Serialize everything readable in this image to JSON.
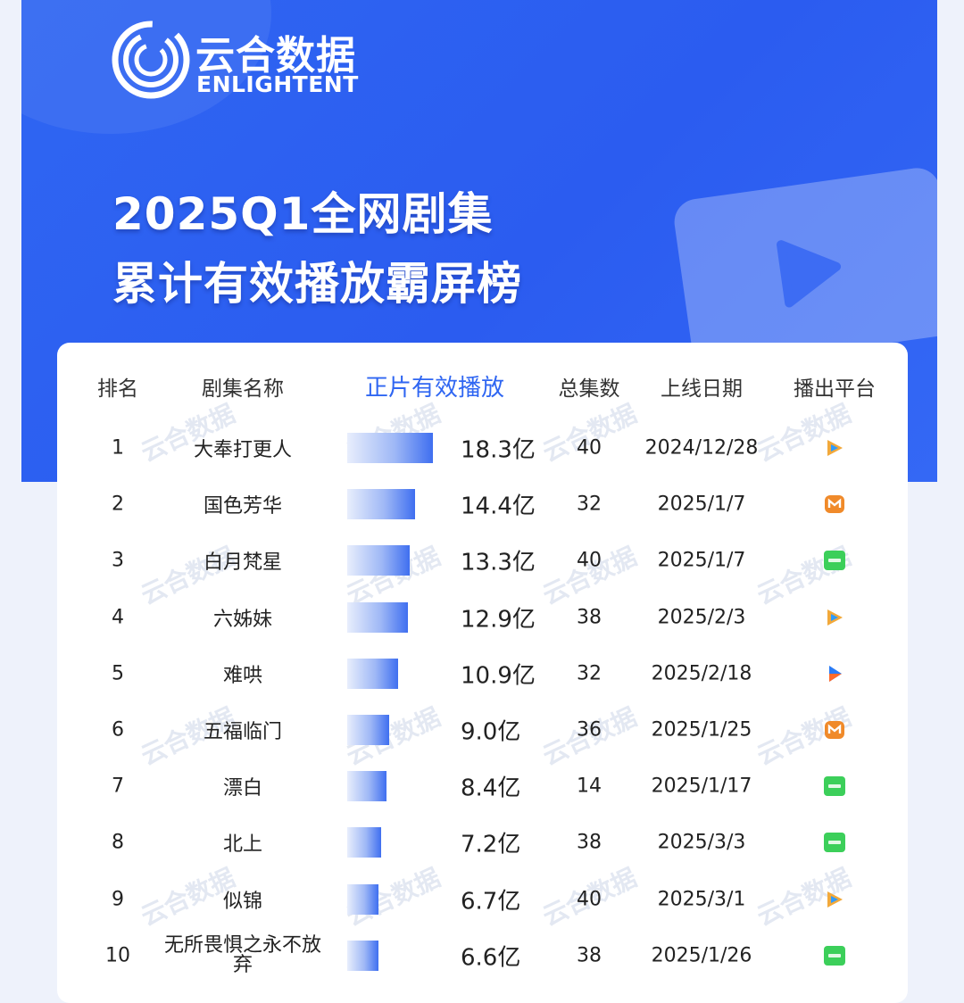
{
  "brand": {
    "cn": "云合数据",
    "en": "ENLIGHTENT",
    "watermark": "云合数据"
  },
  "title": {
    "line1": "2025Q1全网剧集",
    "line2": "累计有效播放霸屏榜"
  },
  "headers": {
    "rank": "排名",
    "name": "剧集名称",
    "views": "正片有效播放",
    "episodes": "总集数",
    "date": "上线日期",
    "platform": "播出平台"
  },
  "colors": {
    "hero_blue": "#2f66f2",
    "accent": "#2f66f2",
    "tencent": "#f2a93b",
    "mango": "#f08a2a",
    "iqiyi": "#3ccf5a",
    "youku": "#2a7bf5"
  },
  "chart_data": {
    "type": "bar",
    "unit": "亿",
    "categories": [
      "大奉打更人",
      "国色芳华",
      "白月梵星",
      "六姊妹",
      "难哄",
      "五福临门",
      "漂白",
      "北上",
      "似锦",
      "无所畏惧之永不放弃"
    ],
    "values": [
      18.3,
      14.4,
      13.3,
      12.9,
      10.9,
      9.0,
      8.4,
      7.2,
      6.7,
      6.6
    ],
    "labels": [
      "18.3亿",
      "14.4亿",
      "13.3亿",
      "12.9亿",
      "10.9亿",
      "9.0亿",
      "8.4亿",
      "7.2亿",
      "6.7亿",
      "6.6亿"
    ]
  },
  "rows": [
    {
      "rank": "1",
      "name": "大奉打更人",
      "views": "18.3亿",
      "episodes": "40",
      "date": "2024/12/28",
      "platform": "tencent-video-icon"
    },
    {
      "rank": "2",
      "name": "国色芳华",
      "views": "14.4亿",
      "episodes": "32",
      "date": "2025/1/7",
      "platform": "mango-tv-icon"
    },
    {
      "rank": "3",
      "name": "白月梵星",
      "views": "13.3亿",
      "episodes": "40",
      "date": "2025/1/7",
      "platform": "iqiyi-icon"
    },
    {
      "rank": "4",
      "name": "六姊妹",
      "views": "12.9亿",
      "episodes": "38",
      "date": "2025/2/3",
      "platform": "tencent-video-icon"
    },
    {
      "rank": "5",
      "name": "难哄",
      "views": "10.9亿",
      "episodes": "32",
      "date": "2025/2/18",
      "platform": "youku-icon"
    },
    {
      "rank": "6",
      "name": "五福临门",
      "views": "9.0亿",
      "episodes": "36",
      "date": "2025/1/25",
      "platform": "mango-tv-icon"
    },
    {
      "rank": "7",
      "name": "漂白",
      "views": "8.4亿",
      "episodes": "14",
      "date": "2025/1/17",
      "platform": "iqiyi-icon"
    },
    {
      "rank": "8",
      "name": "北上",
      "views": "7.2亿",
      "episodes": "38",
      "date": "2025/3/3",
      "platform": "iqiyi-icon"
    },
    {
      "rank": "9",
      "name": "似锦",
      "views": "6.7亿",
      "episodes": "40",
      "date": "2025/3/1",
      "platform": "tencent-video-icon"
    },
    {
      "rank": "10",
      "name": "无所畏惧之永不放弃",
      "views": "6.6亿",
      "episodes": "38",
      "date": "2025/1/26",
      "platform": "iqiyi-icon"
    }
  ]
}
